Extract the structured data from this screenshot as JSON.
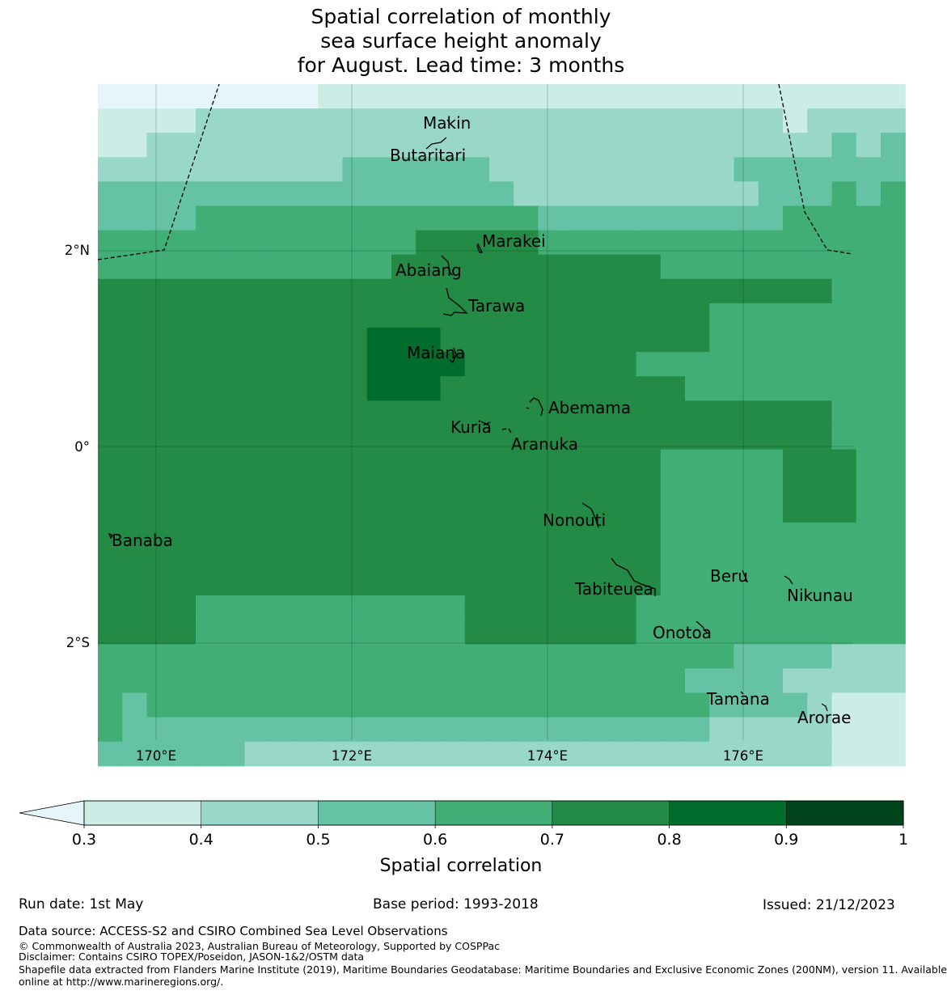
{
  "title": {
    "line1": "Spatial correlation of monthly",
    "line2": "sea surface height anomaly",
    "line3": "for August. Lead time: 3 months"
  },
  "map": {
    "lon_labels": [
      "170°E",
      "172°E",
      "174°E",
      "176°E"
    ],
    "lat_labels": [
      "2°N",
      "0°",
      "2°S"
    ],
    "islands": [
      {
        "name": "Makin",
        "lon": 172.95,
        "lat": 3.3
      },
      {
        "name": "Butaritari",
        "lon": 172.8,
        "lat": 3.1
      },
      {
        "name": "Marakei",
        "lon": 173.3,
        "lat": 2.0
      },
      {
        "name": "Abaiang",
        "lon": 173.0,
        "lat": 1.8
      },
      {
        "name": "Tarawa",
        "lon": 173.0,
        "lat": 1.4
      },
      {
        "name": "Maiana",
        "lon": 173.0,
        "lat": 0.9
      },
      {
        "name": "Abemama",
        "lon": 173.85,
        "lat": 0.4
      },
      {
        "name": "Kuria",
        "lon": 173.4,
        "lat": 0.22
      },
      {
        "name": "Aranuka",
        "lon": 173.6,
        "lat": 0.2
      },
      {
        "name": "Nonouti",
        "lon": 174.4,
        "lat": -0.6
      },
      {
        "name": "Banaba",
        "lon": 169.5,
        "lat": -0.85
      },
      {
        "name": "Tabiteuea",
        "lon": 174.8,
        "lat": -1.2
      },
      {
        "name": "Beru",
        "lon": 176.0,
        "lat": -1.3
      },
      {
        "name": "Nikunau",
        "lon": 176.45,
        "lat": -1.35
      },
      {
        "name": "Onotoa",
        "lon": 175.55,
        "lat": -1.8
      },
      {
        "name": "Tamana",
        "lon": 175.97,
        "lat": -2.5
      },
      {
        "name": "Arorae",
        "lon": 176.8,
        "lat": -2.65
      }
    ]
  },
  "colorbar": {
    "title": "Spatial correlation",
    "ticks": [
      "0.3",
      "0.4",
      "0.5",
      "0.6",
      "0.7",
      "0.8",
      "0.9",
      "1"
    ],
    "colors": [
      "#ccece6",
      "#99d8c9",
      "#66c2a4",
      "#41ae76",
      "#238b45",
      "#006d2c",
      "#00441b"
    ],
    "under_color": "#e5f5f9"
  },
  "footer": {
    "run_date": "Run date: 1st May",
    "base_period": "Base period: 1993-2018",
    "issued": "Issued: 21/12/2023",
    "data_source": "Data source: ACCESS-S2 and CSIRO Combined Sea Level Observations",
    "copyright": "© Commonwealth of Australia 2023, Australian Bureau of Meteorology, Supported by COSPPac",
    "disclaimer": "Disclaimer: Contains CSIRO TOPEX/Poseidon, JASON-1&2/OSTM data",
    "shapefile_line1": "Shapefile data extracted from Flanders Marine Institute (2019), Maritime Boundaries Geodatabase: Maritime Boundaries and Exclusive Economic Zones (200NM), version 11. Available",
    "shapefile_line2": "online at http://www.marineregions.org/."
  }
}
